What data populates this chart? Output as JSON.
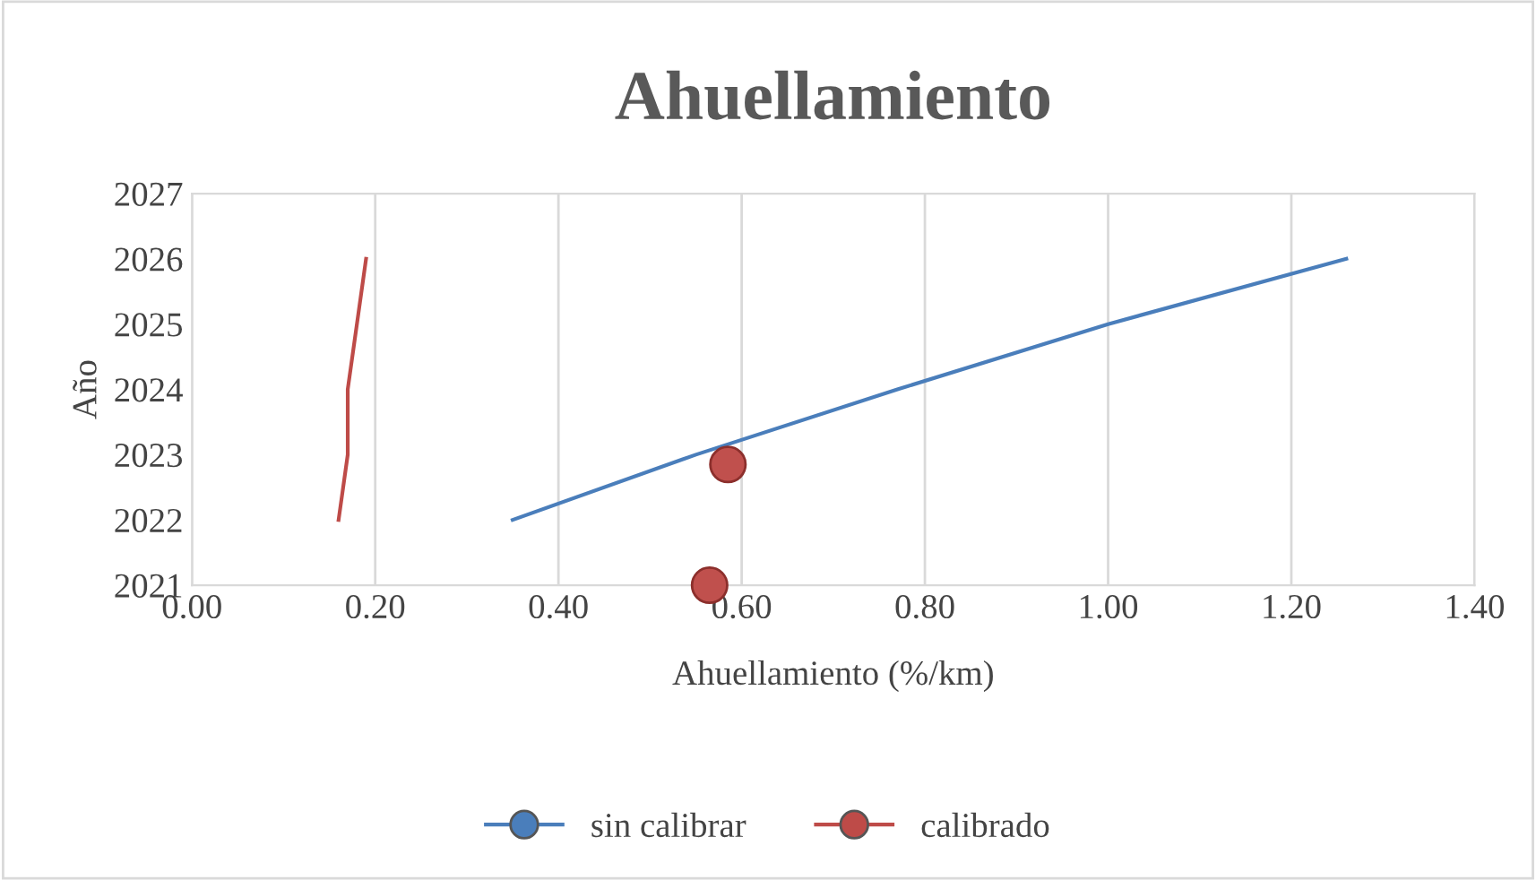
{
  "chart_data": {
    "type": "line",
    "title": "Ahuellamiento",
    "xlabel": "Ahuellamiento (%/km)",
    "ylabel": "Año",
    "series": [
      {
        "name": "sin calibrar",
        "color": "#4a7ebb",
        "x": [
          0.35,
          0.55,
          0.77,
          1.0,
          1.26
        ],
        "values": [
          2022,
          2023,
          2024,
          2025,
          2026
        ]
      },
      {
        "name": "calibrado",
        "color": "#be4b48",
        "x": [
          0.16,
          0.17,
          0.17,
          0.18,
          0.19
        ],
        "values": [
          2022,
          2023,
          2024,
          2025,
          2026
        ]
      },
      {
        "type": "scatter",
        "color": "#c0504d",
        "x": [
          0.585,
          0.565
        ],
        "values": [
          2022.85,
          2021.0
        ]
      }
    ],
    "xlim": [
      0,
      1.4
    ],
    "xticks": [
      {
        "value": 0,
        "label": "0.00"
      },
      {
        "value": 0.2,
        "label": "0.20"
      },
      {
        "value": 0.4,
        "label": "0.40"
      },
      {
        "value": 0.6,
        "label": "0.60"
      },
      {
        "value": 0.8,
        "label": "0.80"
      },
      {
        "value": 1.0,
        "label": "1.00"
      },
      {
        "value": 1.2,
        "label": "1.20"
      },
      {
        "value": 1.4,
        "label": "1.40"
      }
    ],
    "ylim": [
      2021,
      2027
    ],
    "yticks": [
      2021,
      2022,
      2023,
      2024,
      2025,
      2026,
      2027
    ],
    "grid": "x",
    "legend": "bottom"
  }
}
